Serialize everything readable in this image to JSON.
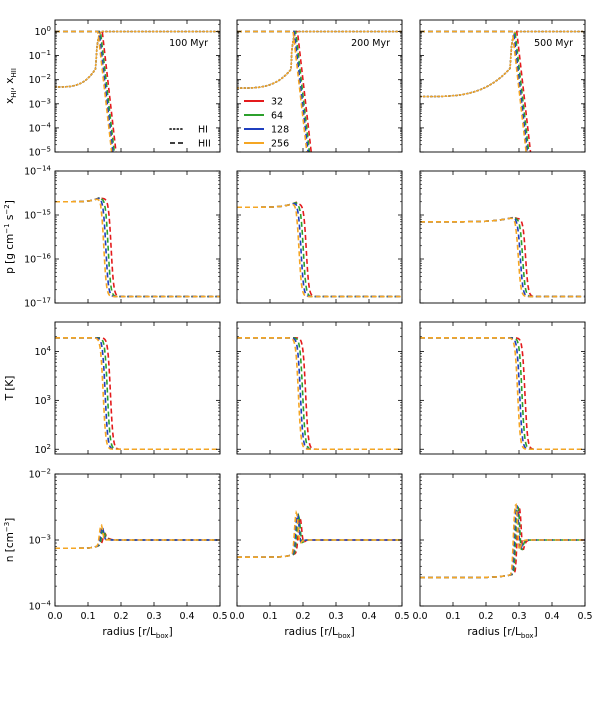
{
  "chart_data": {
    "type": "line",
    "layout": "4 rows x 3 columns grid of panels, shared x axis per column",
    "x_axis": {
      "label_base": "radius [r/L",
      "label_sub": "box",
      "label_end": "]",
      "lim": [
        0,
        0.5
      ],
      "ticks": [
        "0.0",
        "0.1",
        "0.2",
        "0.3",
        "0.4",
        "0.5"
      ]
    },
    "columns": [
      {
        "annotation": "100 Myr",
        "front": 0.14
      },
      {
        "annotation": "200 Myr",
        "front": 0.18
      },
      {
        "annotation": "500 Myr",
        "front": 0.29
      }
    ],
    "rows": [
      {
        "quantity": "ionization fraction",
        "ylabel": "x_HI, x_HII",
        "scale": "log",
        "ylim": [
          1e-05,
          3
        ],
        "ticks": [
          {
            "v": 1,
            "t": "10^0"
          },
          {
            "v": 0.1,
            "t": "10^-1"
          },
          {
            "v": 0.01,
            "t": "10^-2"
          },
          {
            "v": 0.001,
            "t": "10^-3"
          },
          {
            "v": 0.0001,
            "t": "10^-4"
          },
          {
            "v": 1e-05,
            "t": "10^-5"
          }
        ]
      },
      {
        "quantity": "pressure",
        "ylabel": "p [g cm^-1 s^-2]",
        "scale": "log",
        "ylim": [
          1e-17,
          1e-14
        ],
        "ticks": [
          {
            "v": 1e-14,
            "t": "10^-14"
          },
          {
            "v": 1e-15,
            "t": "10^-15"
          },
          {
            "v": 1e-16,
            "t": "10^-16"
          },
          {
            "v": 1e-17,
            "t": "10^-17"
          }
        ],
        "inner": [
          2e-15,
          1.5e-15,
          7e-16
        ],
        "outer": 1.4e-17
      },
      {
        "quantity": "temperature",
        "ylabel": "T [K]",
        "scale": "log",
        "ylim": [
          80,
          40000
        ],
        "ticks": [
          {
            "v": 10000,
            "t": "10^4"
          },
          {
            "v": 1000,
            "t": "10^3"
          },
          {
            "v": 100,
            "t": "10^2"
          }
        ],
        "inner": [
          19000,
          19000,
          19000
        ],
        "outer": 100
      },
      {
        "quantity": "density",
        "ylabel": "n [cm^-3]",
        "scale": "log",
        "ylim": [
          0.0001,
          0.01
        ],
        "ticks": [
          {
            "v": 0.01,
            "t": "10^-2"
          },
          {
            "v": 0.001,
            "t": "10^-3"
          },
          {
            "v": 0.0001,
            "t": "10^-4"
          }
        ],
        "inner": [
          0.00075,
          0.00055,
          0.00027
        ],
        "outer": 0.001
      }
    ],
    "series": [
      {
        "name": "32",
        "color": "#e41a1c",
        "offset": 0.022
      },
      {
        "name": "64",
        "color": "#2ca02c",
        "offset": 0.013
      },
      {
        "name": "128",
        "color": "#1f3fbf",
        "offset": 0.006
      },
      {
        "name": "256",
        "color": "#f5a623",
        "offset": 0.0
      }
    ],
    "linestyle_legend": [
      {
        "label": "HI",
        "style": "dotted"
      },
      {
        "label": "HII",
        "style": "dashed"
      }
    ],
    "grid": false,
    "legend_placement": "top-left panel, center"
  }
}
